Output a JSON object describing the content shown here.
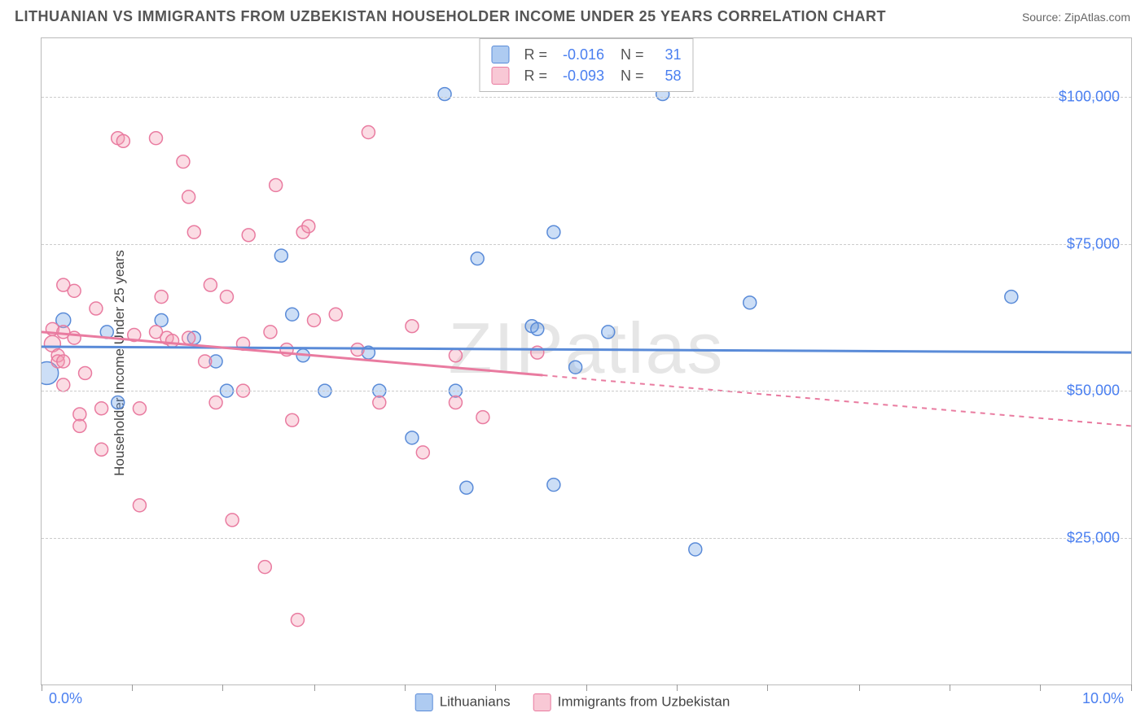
{
  "header": {
    "title": "LITHUANIAN VS IMMIGRANTS FROM UZBEKISTAN HOUSEHOLDER INCOME UNDER 25 YEARS CORRELATION CHART",
    "source": "Source: ZipAtlas.com"
  },
  "watermark": "ZIPatlas",
  "chart": {
    "type": "scatter",
    "ylabel": "Householder Income Under 25 years",
    "xlim": [
      0,
      10
    ],
    "ylim": [
      0,
      110000
    ],
    "xtick_positions_pct": [
      0,
      8.3,
      16.6,
      25,
      33.3,
      41.6,
      50,
      58.3,
      66.6,
      75,
      83.3,
      91.6,
      100
    ],
    "xaxis": {
      "min_label": "0.0%",
      "max_label": "10.0%"
    },
    "yticks": [
      {
        "value": 25000,
        "label": "$25,000"
      },
      {
        "value": 50000,
        "label": "$50,000"
      },
      {
        "value": 75000,
        "label": "$75,000"
      },
      {
        "value": 100000,
        "label": "$100,000"
      }
    ],
    "grid_color": "#cccccc",
    "background_color": "#ffffff",
    "label_color": "#4a7ff0",
    "series": [
      {
        "name": "Lithuanians",
        "legend_label": "Lithuanians",
        "color_fill": "rgba(108,160,229,0.35)",
        "color_stroke": "#5a8bd8",
        "r_label": "R =",
        "r_value": "-0.016",
        "n_label": "N =",
        "n_value": "31",
        "regression": {
          "y_at_xmin": 57500,
          "y_at_xmax": 56500,
          "solid_until_x": 10.0
        },
        "points": [
          {
            "x": 0.05,
            "y": 53000,
            "r": 14
          },
          {
            "x": 0.2,
            "y": 62000,
            "r": 9
          },
          {
            "x": 0.6,
            "y": 60000,
            "r": 8
          },
          {
            "x": 0.7,
            "y": 48000,
            "r": 8
          },
          {
            "x": 1.1,
            "y": 62000,
            "r": 8
          },
          {
            "x": 1.4,
            "y": 59000,
            "r": 8
          },
          {
            "x": 1.6,
            "y": 55000,
            "r": 8
          },
          {
            "x": 1.7,
            "y": 50000,
            "r": 8
          },
          {
            "x": 2.2,
            "y": 73000,
            "r": 8
          },
          {
            "x": 2.3,
            "y": 63000,
            "r": 8
          },
          {
            "x": 2.4,
            "y": 56000,
            "r": 8
          },
          {
            "x": 2.6,
            "y": 50000,
            "r": 8
          },
          {
            "x": 3.0,
            "y": 56500,
            "r": 8
          },
          {
            "x": 3.1,
            "y": 50000,
            "r": 8
          },
          {
            "x": 3.4,
            "y": 42000,
            "r": 8
          },
          {
            "x": 3.7,
            "y": 100500,
            "r": 8
          },
          {
            "x": 3.8,
            "y": 50000,
            "r": 8
          },
          {
            "x": 3.9,
            "y": 33500,
            "r": 8
          },
          {
            "x": 4.0,
            "y": 72500,
            "r": 8
          },
          {
            "x": 4.5,
            "y": 61000,
            "r": 8
          },
          {
            "x": 4.55,
            "y": 60500,
            "r": 8
          },
          {
            "x": 4.7,
            "y": 77000,
            "r": 8
          },
          {
            "x": 4.7,
            "y": 34000,
            "r": 8
          },
          {
            "x": 4.9,
            "y": 54000,
            "r": 8
          },
          {
            "x": 5.2,
            "y": 60000,
            "r": 8
          },
          {
            "x": 5.7,
            "y": 100500,
            "r": 8
          },
          {
            "x": 6.0,
            "y": 23000,
            "r": 8
          },
          {
            "x": 6.5,
            "y": 65000,
            "r": 8
          },
          {
            "x": 8.9,
            "y": 66000,
            "r": 8
          }
        ]
      },
      {
        "name": "Immigrants from Uzbekistan",
        "legend_label": "Immigrants from Uzbekistan",
        "color_fill": "rgba(243,155,178,0.35)",
        "color_stroke": "#e97ba0",
        "r_label": "R =",
        "r_value": "-0.093",
        "n_label": "N =",
        "n_value": "58",
        "regression": {
          "y_at_xmin": 60000,
          "y_at_xmax": 44000,
          "solid_until_x": 4.6
        },
        "points": [
          {
            "x": 0.1,
            "y": 60500,
            "r": 8
          },
          {
            "x": 0.1,
            "y": 58000,
            "r": 10
          },
          {
            "x": 0.15,
            "y": 56000,
            "r": 8
          },
          {
            "x": 0.15,
            "y": 55000,
            "r": 8
          },
          {
            "x": 0.2,
            "y": 68000,
            "r": 8
          },
          {
            "x": 0.2,
            "y": 60000,
            "r": 8
          },
          {
            "x": 0.2,
            "y": 55000,
            "r": 8
          },
          {
            "x": 0.2,
            "y": 51000,
            "r": 8
          },
          {
            "x": 0.3,
            "y": 67000,
            "r": 8
          },
          {
            "x": 0.3,
            "y": 59000,
            "r": 8
          },
          {
            "x": 0.35,
            "y": 46000,
            "r": 8
          },
          {
            "x": 0.35,
            "y": 44000,
            "r": 8
          },
          {
            "x": 0.4,
            "y": 53000,
            "r": 8
          },
          {
            "x": 0.5,
            "y": 64000,
            "r": 8
          },
          {
            "x": 0.55,
            "y": 47000,
            "r": 8
          },
          {
            "x": 0.55,
            "y": 40000,
            "r": 8
          },
          {
            "x": 0.7,
            "y": 93000,
            "r": 8
          },
          {
            "x": 0.75,
            "y": 92500,
            "r": 8
          },
          {
            "x": 0.85,
            "y": 59500,
            "r": 8
          },
          {
            "x": 0.9,
            "y": 47000,
            "r": 8
          },
          {
            "x": 0.9,
            "y": 30500,
            "r": 8
          },
          {
            "x": 1.05,
            "y": 93000,
            "r": 8
          },
          {
            "x": 1.05,
            "y": 60000,
            "r": 8
          },
          {
            "x": 1.1,
            "y": 66000,
            "r": 8
          },
          {
            "x": 1.15,
            "y": 59000,
            "r": 8
          },
          {
            "x": 1.2,
            "y": 58500,
            "r": 8
          },
          {
            "x": 1.3,
            "y": 89000,
            "r": 8
          },
          {
            "x": 1.35,
            "y": 83000,
            "r": 8
          },
          {
            "x": 1.35,
            "y": 59000,
            "r": 8
          },
          {
            "x": 1.4,
            "y": 77000,
            "r": 8
          },
          {
            "x": 1.5,
            "y": 55000,
            "r": 8
          },
          {
            "x": 1.55,
            "y": 68000,
            "r": 8
          },
          {
            "x": 1.6,
            "y": 48000,
            "r": 8
          },
          {
            "x": 1.7,
            "y": 66000,
            "r": 8
          },
          {
            "x": 1.75,
            "y": 28000,
            "r": 8
          },
          {
            "x": 1.85,
            "y": 58000,
            "r": 8
          },
          {
            "x": 1.85,
            "y": 50000,
            "r": 8
          },
          {
            "x": 1.9,
            "y": 76500,
            "r": 8
          },
          {
            "x": 2.05,
            "y": 20000,
            "r": 8
          },
          {
            "x": 2.1,
            "y": 60000,
            "r": 8
          },
          {
            "x": 2.15,
            "y": 85000,
            "r": 8
          },
          {
            "x": 2.25,
            "y": 57000,
            "r": 8
          },
          {
            "x": 2.3,
            "y": 45000,
            "r": 8
          },
          {
            "x": 2.35,
            "y": 11000,
            "r": 8
          },
          {
            "x": 2.4,
            "y": 77000,
            "r": 8
          },
          {
            "x": 2.45,
            "y": 78000,
            "r": 8
          },
          {
            "x": 2.5,
            "y": 62000,
            "r": 8
          },
          {
            "x": 2.7,
            "y": 63000,
            "r": 8
          },
          {
            "x": 2.9,
            "y": 57000,
            "r": 8
          },
          {
            "x": 3.0,
            "y": 94000,
            "r": 8
          },
          {
            "x": 3.1,
            "y": 48000,
            "r": 8
          },
          {
            "x": 3.4,
            "y": 61000,
            "r": 8
          },
          {
            "x": 3.5,
            "y": 39500,
            "r": 8
          },
          {
            "x": 3.8,
            "y": 56000,
            "r": 8
          },
          {
            "x": 3.8,
            "y": 48000,
            "r": 8
          },
          {
            "x": 4.05,
            "y": 45500,
            "r": 8
          },
          {
            "x": 4.55,
            "y": 56500,
            "r": 8
          }
        ]
      }
    ]
  },
  "bottom_legend": {
    "items": [
      {
        "label": "Lithuanians",
        "fill": "rgba(108,160,229,0.55)",
        "stroke": "#5a8bd8"
      },
      {
        "label": "Immigrants from Uzbekistan",
        "fill": "rgba(243,155,178,0.55)",
        "stroke": "#e97ba0"
      }
    ]
  }
}
